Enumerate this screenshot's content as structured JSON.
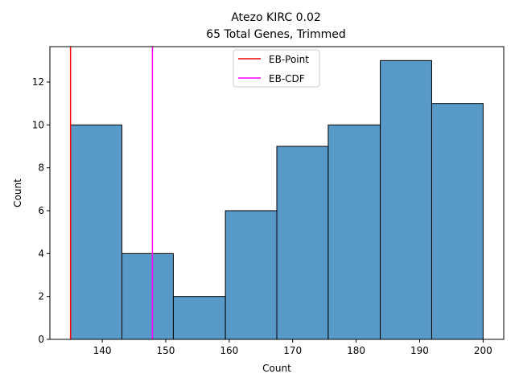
{
  "chart_data": {
    "type": "bar",
    "title": "Atezo KIRC 0.02",
    "subtitle": "65 Total Genes, Trimmed",
    "xlabel": "Count",
    "ylabel": "Count",
    "bins": [
      {
        "start": 135.0,
        "end": 143.1,
        "count": 10
      },
      {
        "start": 143.1,
        "end": 151.2,
        "count": 4
      },
      {
        "start": 151.2,
        "end": 159.4,
        "count": 2
      },
      {
        "start": 159.4,
        "end": 167.5,
        "count": 6
      },
      {
        "start": 167.5,
        "end": 175.6,
        "count": 9
      },
      {
        "start": 175.6,
        "end": 183.8,
        "count": 10
      },
      {
        "start": 183.8,
        "end": 191.9,
        "count": 13
      },
      {
        "start": 191.9,
        "end": 200.0,
        "count": 11
      }
    ],
    "xlim": [
      131.75,
      203.25
    ],
    "ylim": [
      0,
      13.65
    ],
    "xticks": [
      140,
      150,
      160,
      170,
      180,
      190,
      200
    ],
    "yticks": [
      0,
      2,
      4,
      6,
      8,
      10,
      12
    ],
    "bar_color": "#5799c7",
    "vlines": [
      {
        "name": "EB-Point",
        "x": 135.0,
        "color": "#ff0000"
      },
      {
        "name": "EB-CDF",
        "x": 147.9,
        "color": "#ff00ff"
      }
    ],
    "legend": {
      "position": "top-center",
      "entries": [
        "EB-Point",
        "EB-CDF"
      ]
    },
    "grid": false
  }
}
